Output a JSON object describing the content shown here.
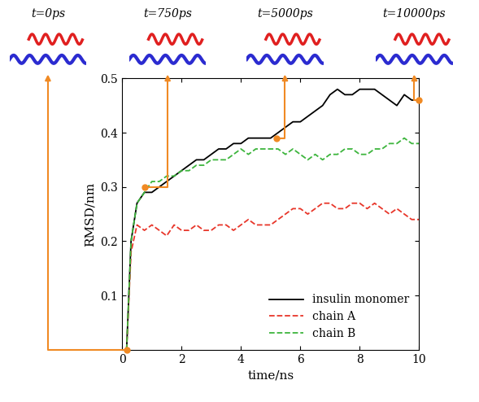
{
  "chart_data": {
    "type": "line",
    "x_label": "time/ns",
    "y_label": "RMSD/nm",
    "x": [
      0.15,
      0.3,
      0.5,
      0.75,
      1.0,
      1.25,
      1.5,
      1.75,
      2.0,
      2.25,
      2.5,
      2.75,
      3.0,
      3.25,
      3.5,
      3.75,
      4.0,
      4.25,
      4.5,
      4.75,
      5.0,
      5.25,
      5.5,
      5.75,
      6.0,
      6.25,
      6.5,
      6.75,
      7.0,
      7.25,
      7.5,
      7.75,
      8.0,
      8.25,
      8.5,
      8.75,
      9.0,
      9.25,
      9.5,
      9.75,
      10.0
    ],
    "series": [
      {
        "name": "insulin monomer",
        "color": "#000000",
        "line_style": "solid",
        "values": [
          0.0,
          0.2,
          0.27,
          0.29,
          0.29,
          0.3,
          0.31,
          0.32,
          0.33,
          0.34,
          0.35,
          0.35,
          0.36,
          0.37,
          0.37,
          0.38,
          0.38,
          0.39,
          0.39,
          0.39,
          0.39,
          0.4,
          0.41,
          0.42,
          0.42,
          0.43,
          0.44,
          0.45,
          0.47,
          0.48,
          0.47,
          0.47,
          0.48,
          0.48,
          0.48,
          0.47,
          0.46,
          0.45,
          0.47,
          0.46,
          0.46
        ]
      },
      {
        "name": "chain A",
        "color": "#e8362a",
        "line_style": "dashed",
        "values": [
          0.0,
          0.18,
          0.23,
          0.22,
          0.23,
          0.22,
          0.21,
          0.23,
          0.22,
          0.22,
          0.23,
          0.22,
          0.22,
          0.23,
          0.23,
          0.22,
          0.23,
          0.24,
          0.23,
          0.23,
          0.23,
          0.24,
          0.25,
          0.26,
          0.26,
          0.25,
          0.26,
          0.27,
          0.27,
          0.26,
          0.26,
          0.27,
          0.27,
          0.26,
          0.27,
          0.26,
          0.25,
          0.26,
          0.25,
          0.24,
          0.24
        ]
      },
      {
        "name": "chain B",
        "color": "#3db53d",
        "line_style": "dashed",
        "values": [
          0.0,
          0.2,
          0.27,
          0.29,
          0.31,
          0.31,
          0.32,
          0.32,
          0.33,
          0.33,
          0.34,
          0.34,
          0.35,
          0.35,
          0.35,
          0.36,
          0.37,
          0.36,
          0.37,
          0.37,
          0.37,
          0.37,
          0.36,
          0.37,
          0.36,
          0.35,
          0.36,
          0.35,
          0.36,
          0.36,
          0.37,
          0.37,
          0.36,
          0.36,
          0.37,
          0.37,
          0.38,
          0.38,
          0.39,
          0.38,
          0.38
        ]
      }
    ],
    "xlim": [
      0,
      10
    ],
    "xticks": [
      0,
      2,
      4,
      6,
      8,
      10
    ],
    "ylim": [
      0,
      0.5
    ],
    "yticks": [
      0.1,
      0.2,
      0.3,
      0.4,
      0.5
    ],
    "legend": "lower right",
    "annotations": [
      {
        "text": "t=0ps",
        "x": 0.15,
        "y": 0.0
      },
      {
        "text": "t=750ps",
        "x": 0.75,
        "y": 0.3
      },
      {
        "text": "t=5000ps",
        "x": 5.2,
        "y": 0.39
      },
      {
        "text": "t=10000ps",
        "x": 10.0,
        "y": 0.46
      }
    ]
  }
}
